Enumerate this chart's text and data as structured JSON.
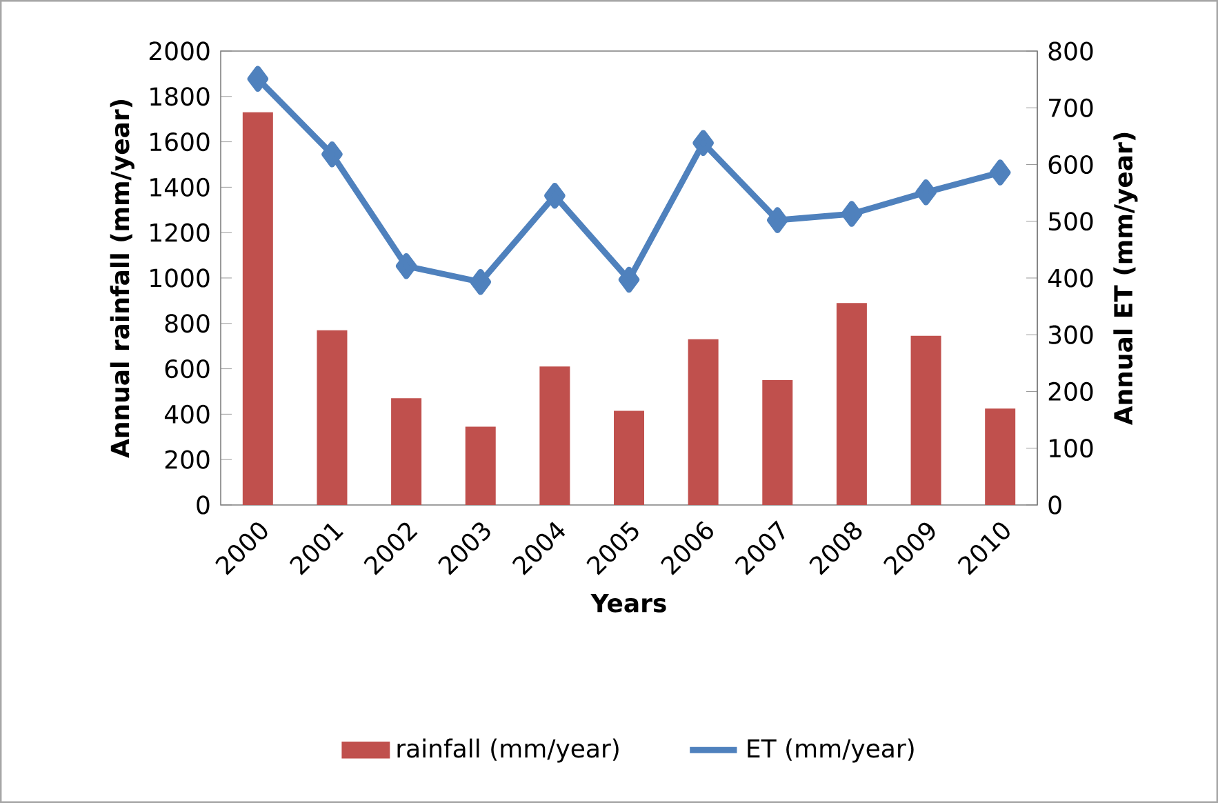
{
  "chart_data": {
    "type": "bar",
    "xlabel": "Years",
    "ylabel": "Annual rainfall  (mm/year)",
    "y2label": "Annual ET  (mm/year)",
    "categories": [
      "2000",
      "2001",
      "2002",
      "2003",
      "2004",
      "2005",
      "2006",
      "2007",
      "2008",
      "2009",
      "2010"
    ],
    "series": [
      {
        "name": "rainfall (mm/year)",
        "color": "#c0504d",
        "values": [
          1730,
          770,
          470,
          345,
          610,
          415,
          730,
          550,
          890,
          745,
          425
        ]
      },
      {
        "name": "ET (mm/year)",
        "type": "line",
        "axis": "y2",
        "color": "#4f81bd",
        "values": [
          751,
          618,
          421,
          393,
          545,
          397,
          638,
          502,
          513,
          551,
          586
        ]
      }
    ],
    "ylim": [
      0,
      2000
    ],
    "yticks": [
      0,
      200,
      400,
      600,
      800,
      1000,
      1200,
      1400,
      1600,
      1800,
      2000
    ],
    "y2lim": [
      0,
      800
    ],
    "y2ticks": [
      0,
      100,
      200,
      300,
      400,
      500,
      600,
      700,
      800
    ],
    "marker": "diamond",
    "legend": "bottom"
  }
}
